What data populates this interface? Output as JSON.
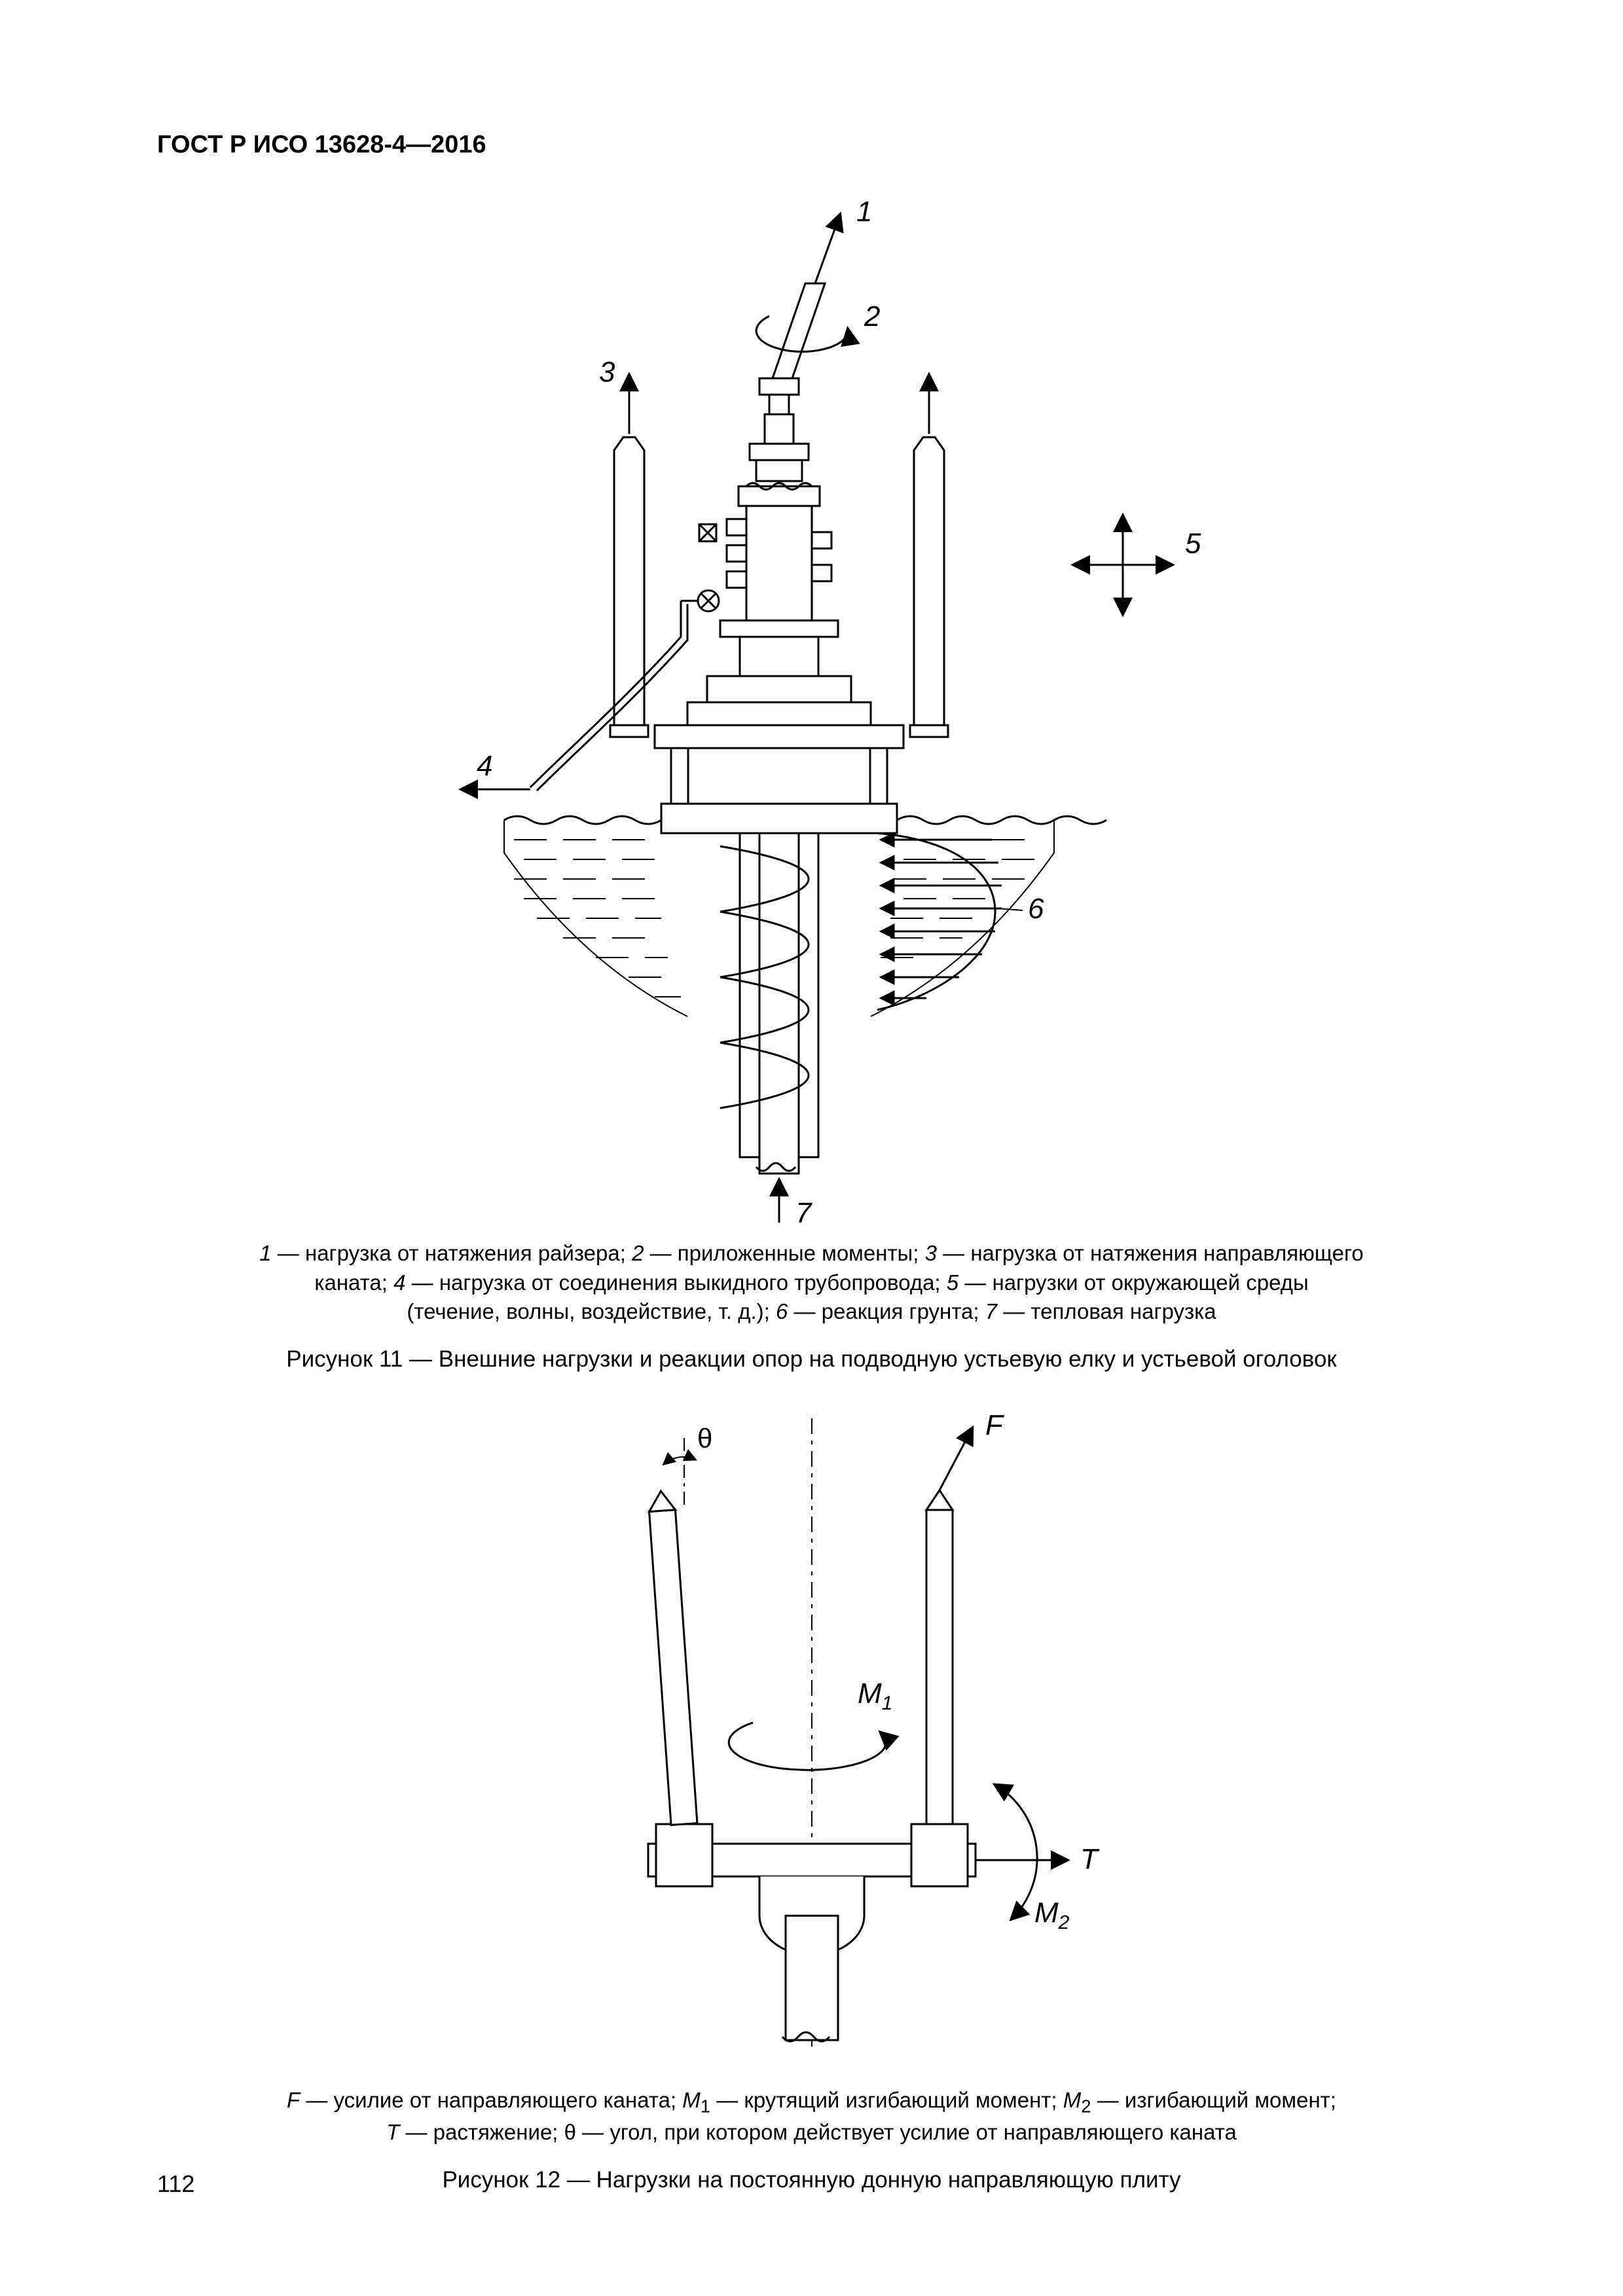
{
  "header": "ГОСТ Р ИСО 13628-4—2016",
  "page_number": "112",
  "stroke_color": "#000000",
  "stroke_width": 3,
  "fig11": {
    "labels": {
      "1": "1",
      "2": "2",
      "3": "3",
      "4": "4",
      "5": "5",
      "6": "6",
      "7": "7"
    },
    "legend_parts": [
      {
        "n": "1",
        "t": " — нагрузка от натяжения райзера; "
      },
      {
        "n": "2",
        "t": " — приложенные моменты; "
      },
      {
        "n": "3",
        "t": " — нагрузка от натяжения направляющего"
      },
      {
        "br": true
      },
      {
        "plain": "каната; "
      },
      {
        "n": "4",
        "t": " — нагрузка от соединения выкидного трубопровода; "
      },
      {
        "n": "5",
        "t": " — нагрузки от окружающей среды"
      },
      {
        "br": true
      },
      {
        "plain": "(течение, волны, воздействие, т. д.); "
      },
      {
        "n": "6",
        "t": " — реакция грунта; "
      },
      {
        "n": "7",
        "t": " — тепловая нагрузка"
      }
    ],
    "caption": "Рисунок 11 — Внешние нагрузки и реакции опор на подводную устьевую елку и устьевой оголовок"
  },
  "fig12": {
    "labels": {
      "theta": "θ",
      "F": "F",
      "M1": "M",
      "M1_sub": "1",
      "M2": "M",
      "M2_sub": "2",
      "T": "T"
    },
    "legend_parts": [
      {
        "s": "F",
        "t": " — усилие от направляющего каната"
      },
      {
        "plain": "; "
      },
      {
        "s": "M",
        "sub": "1",
        "t": " — крутящий изгибающий момент"
      },
      {
        "plain": "; "
      },
      {
        "s": "M",
        "sub": "2",
        "t": " — изгибающий момент"
      },
      {
        "plain": ";"
      },
      {
        "br": true
      },
      {
        "s": "T",
        "t": " — растяжение; "
      },
      {
        "plain": "θ — угол, при котором действует усилие от направляющего каната"
      }
    ],
    "caption": "Рисунок 12 — Нагрузки на постоянную донную направляющую плиту"
  }
}
